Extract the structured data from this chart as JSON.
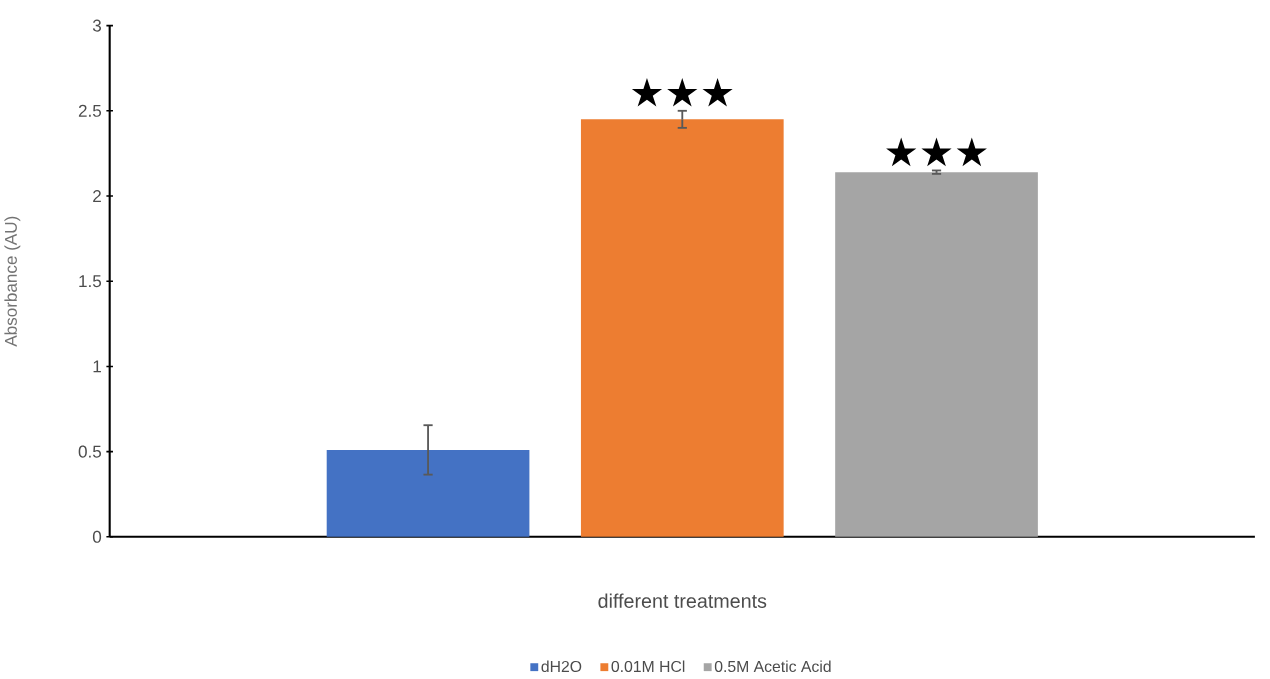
{
  "chart_data": {
    "type": "bar",
    "xlabel": "different treatments",
    "ylabel": "Absorbance (AU)",
    "categories": [
      null
    ],
    "series": [
      {
        "name": "dH2O",
        "color": "#4472c4",
        "values": [
          0.51
        ],
        "errors": [
          0.145
        ]
      },
      {
        "name": "0.01M HCl",
        "color": "#ed7d31",
        "values": [
          2.45
        ],
        "errors": [
          0.05
        ]
      },
      {
        "name": "0.5M Acetic Acid",
        "color": "#a5a5a5",
        "values": [
          2.14
        ],
        "errors": [
          0.01
        ]
      }
    ],
    "ylim": [
      0,
      3
    ],
    "yticks": [
      0,
      0.5,
      1,
      1.5,
      2,
      2.5,
      3
    ],
    "annotations": [
      "★★★",
      "★★★"
    ],
    "grid": false,
    "legend": "bottom"
  }
}
